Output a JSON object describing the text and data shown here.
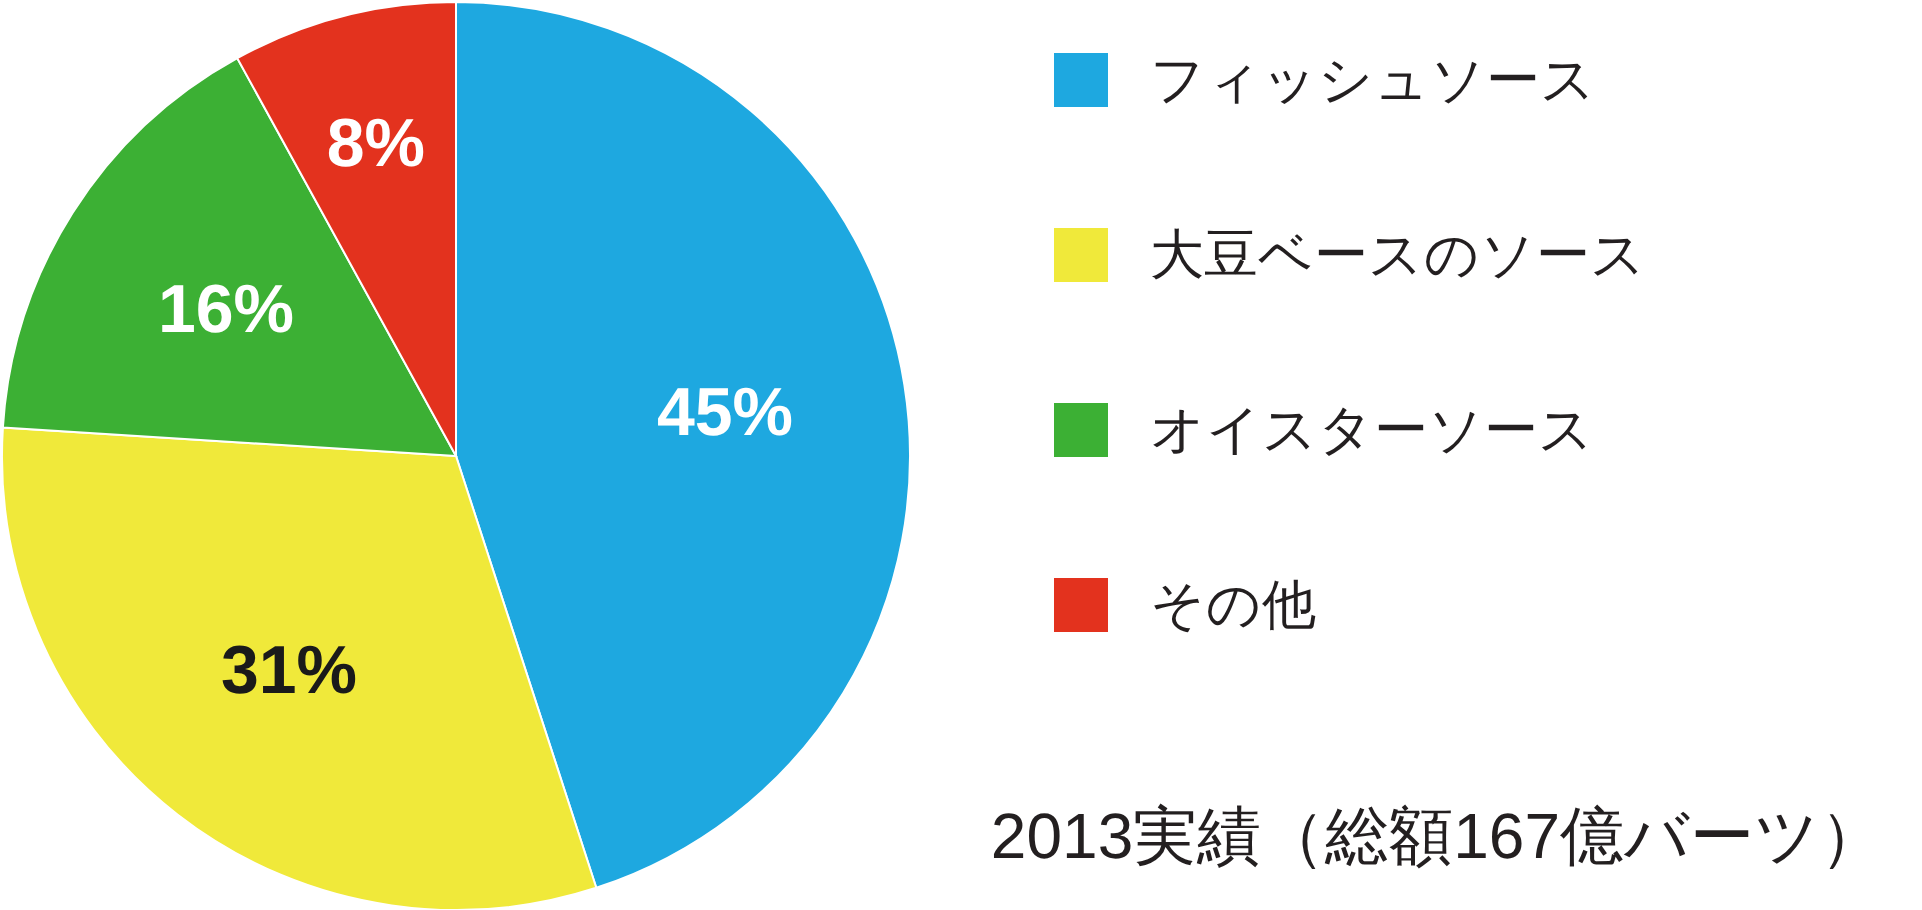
{
  "chart_data": {
    "type": "pie",
    "categories": [
      "フィッシュソース",
      "大豆ベースのソース",
      "オイスターソース",
      "その他"
    ],
    "values": [
      45,
      31,
      16,
      8
    ],
    "colors": [
      "#1ea8e0",
      "#f0e93a",
      "#3cb034",
      "#e3321e"
    ],
    "value_labels": [
      "45%",
      "31%",
      "16%",
      "8%"
    ],
    "legend": "right",
    "annotations": [
      "2013実績（総額167億バーツ）"
    ]
  }
}
